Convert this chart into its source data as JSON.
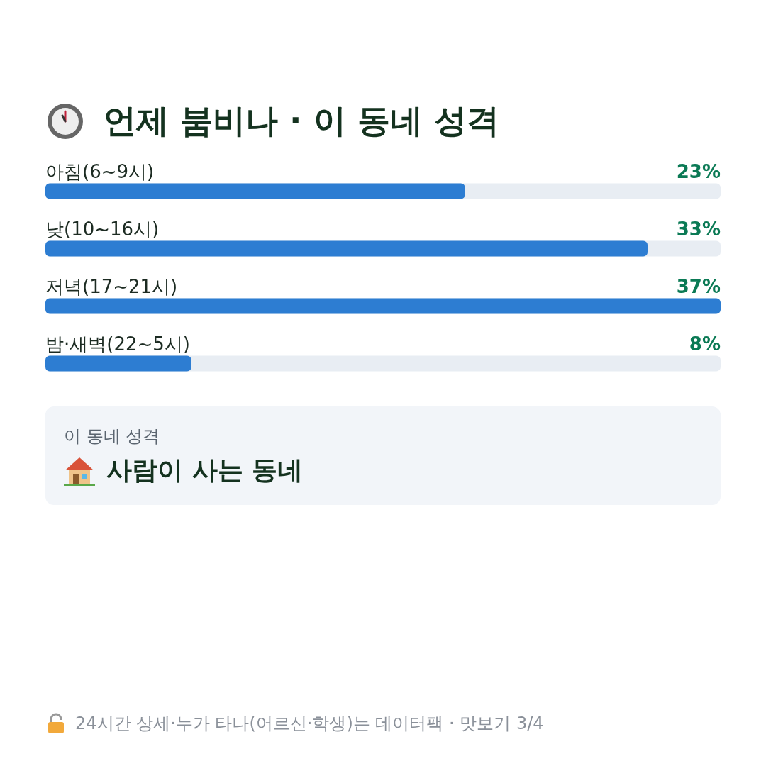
{
  "chart_data": {
    "type": "bar",
    "orientation": "horizontal",
    "title": "언제 붐비나 · 이 동네 성격",
    "categories": [
      "아침(6~9시)",
      "낮(10~16시)",
      "저녁(17~21시)",
      "밤·새벽(22~5시)"
    ],
    "values": [
      23,
      33,
      37,
      8
    ],
    "value_labels": [
      "23%",
      "33%",
      "37%",
      "8%"
    ],
    "color": "#2d7dd2",
    "annotations": [
      "이 동네 성격",
      "사람이 사는 동네",
      "24시간 상세·누가 타나(어르신·학생)는 데이터팩 · 맛보기 3/4"
    ]
  }
}
